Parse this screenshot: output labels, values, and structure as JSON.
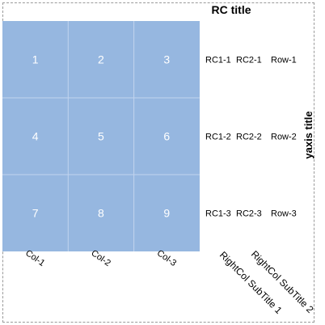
{
  "chart_data": {
    "type": "heatmap",
    "title": "RC title",
    "ylabel": "yaxis title",
    "cell_color": "#96b7e0",
    "grid_color": "#c2d4ee",
    "columns": [
      "Col-1",
      "Col-2",
      "Col-3"
    ],
    "values": [
      [
        1,
        2,
        3
      ],
      [
        4,
        5,
        6
      ],
      [
        7,
        8,
        9
      ]
    ],
    "right_columns": [
      [
        "RC1-1",
        "RC2-1",
        "Row-1"
      ],
      [
        "RC1-2",
        "RC2-2",
        "Row-2"
      ],
      [
        "RC1-3",
        "RC2-3",
        "Row-3"
      ]
    ],
    "right_subtitles": [
      "RightCol SubTitle 1",
      "RightCol SubTitle 2"
    ]
  }
}
